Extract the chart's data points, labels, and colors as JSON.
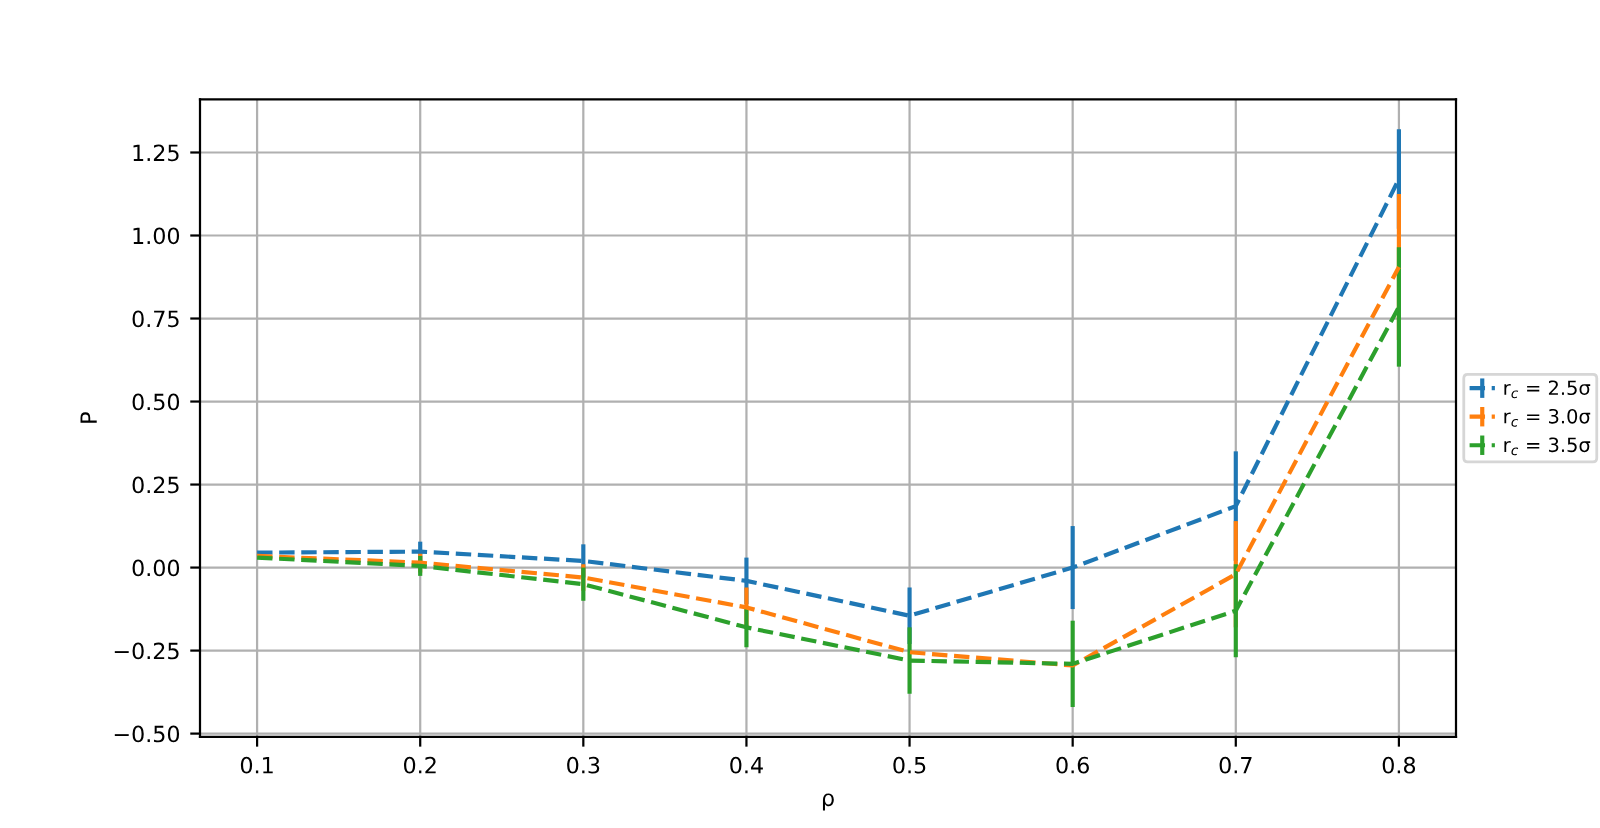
{
  "chart_data": {
    "type": "line",
    "xlabel": "ρ",
    "ylabel": "P",
    "x": [
      0.1,
      0.2,
      0.3,
      0.4,
      0.5,
      0.6,
      0.7,
      0.8
    ],
    "series": [
      {
        "name": "r$_{c}$ = 2.5σ",
        "color": "#1f77b4",
        "values": [
          0.045,
          0.048,
          0.02,
          -0.04,
          -0.145,
          0.0,
          0.185,
          1.17
        ],
        "errors": [
          null,
          0.03,
          0.05,
          0.07,
          0.085,
          0.125,
          0.165,
          0.15
        ]
      },
      {
        "name": "r$_{c}$ = 3.0σ",
        "color": "#ff7f0e",
        "values": [
          0.035,
          0.015,
          -0.03,
          -0.12,
          -0.255,
          -0.295,
          -0.02,
          0.905
        ],
        "errors": [
          null,
          0.03,
          0.04,
          0.06,
          null,
          null,
          0.16,
          0.22
        ]
      },
      {
        "name": "r$_{c}$ = 3.5σ",
        "color": "#2ca02c",
        "values": [
          0.03,
          0.005,
          -0.05,
          -0.18,
          -0.28,
          -0.29,
          -0.13,
          0.785
        ],
        "errors": [
          null,
          0.03,
          0.05,
          0.06,
          0.1,
          0.13,
          0.14,
          0.18
        ]
      }
    ],
    "xlim": [
      0.065,
      0.835
    ],
    "ylim": [
      -0.51,
      1.41
    ],
    "xticks": [
      0.1,
      0.2,
      0.3,
      0.4,
      0.5,
      0.6,
      0.7,
      0.8
    ],
    "yticks": [
      {
        "value": -0.5,
        "label": "−0.50"
      },
      {
        "value": -0.25,
        "label": "−0.25"
      },
      {
        "value": 0,
        "label": "0.00"
      },
      {
        "value": 0.25,
        "label": "0.25"
      },
      {
        "value": 0.5,
        "label": "0.50"
      },
      {
        "value": 0.75,
        "label": "0.75"
      },
      {
        "value": 1.0,
        "label": "1.00"
      },
      {
        "value": 1.25,
        "label": "1.25"
      }
    ],
    "grid": true,
    "legend": "right",
    "line_style": "dashed",
    "marker": "none"
  }
}
